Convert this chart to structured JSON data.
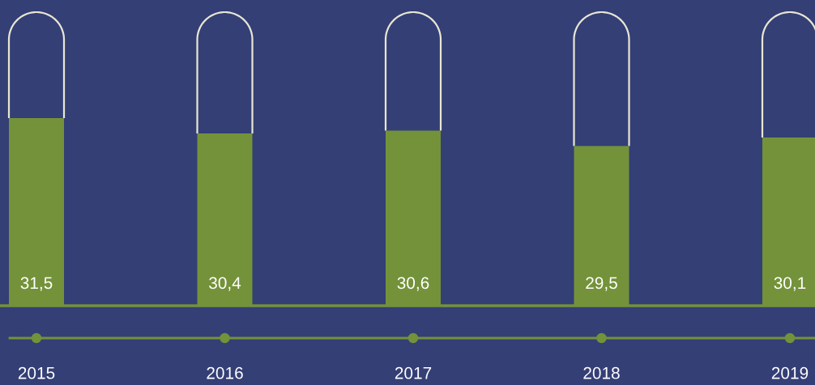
{
  "chart_data": {
    "type": "bar",
    "categories": [
      "2015",
      "2016",
      "2017",
      "2018",
      "2019"
    ],
    "values": [
      31.5,
      30.4,
      30.6,
      29.5,
      30.1
    ],
    "value_labels": [
      "31,5",
      "30,4",
      "30,6",
      "29,5",
      "30,1"
    ],
    "color": "#74923a",
    "ylim": [
      18,
      40
    ]
  }
}
